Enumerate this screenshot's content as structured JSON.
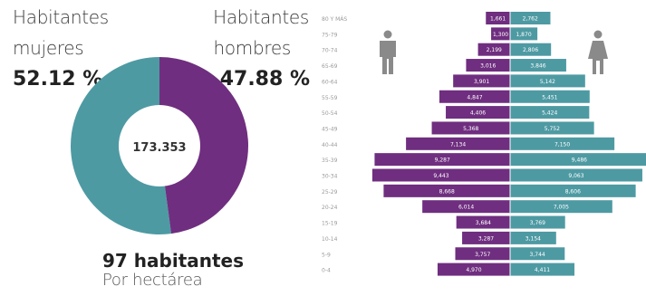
{
  "summary": {
    "female_label_line1": "Habitantes",
    "female_label_line2": "mujeres",
    "female_percent": "52.12 %",
    "male_label_line1": "Habitantes",
    "male_label_line2": "hombres",
    "male_percent": "47.88 %",
    "total_population": "173.353",
    "density_value": "97 habitantes",
    "density_unit": "Por hectárea"
  },
  "colors": {
    "female": "#4e9aa3",
    "male": "#6f2e7f",
    "donut_hole": "#ffffff",
    "icon": "#8a8a8a"
  },
  "icons": [
    "male-person-icon",
    "female-person-icon"
  ],
  "chart_data": [
    {
      "type": "pie",
      "categories": [
        "Habitantes mujeres",
        "Habitantes hombres"
      ],
      "values": [
        52.12,
        47.88
      ],
      "center_label": "173.353"
    },
    {
      "type": "bar",
      "orientation": "horizontal",
      "categories": [
        "80 Y MÁS",
        "75-79",
        "70-74",
        "65-69",
        "60-64",
        "55-59",
        "50-54",
        "45-49",
        "40-44",
        "35-39",
        "30-34",
        "25-29",
        "20-24",
        "15-19",
        "10-14",
        "5-9",
        "0-4"
      ],
      "series": [
        {
          "name": "hombres",
          "values": [
            1661,
            1300,
            2199,
            3016,
            3901,
            4847,
            4406,
            5368,
            7134,
            9287,
            9443,
            8668,
            6014,
            3684,
            3287,
            3757,
            4970
          ],
          "labels": [
            "1,661",
            "1,300",
            "2,199",
            "3,016",
            "3,901",
            "4,847",
            "4,406",
            "5,368",
            "7,134",
            "9,287",
            "9,443",
            "8,668",
            "6,014",
            "3,684",
            "3,287",
            "3,757",
            "4,970"
          ]
        },
        {
          "name": "mujeres",
          "values": [
            2762,
            1870,
            2806,
            3846,
            5142,
            5451,
            5424,
            5752,
            7150,
            9486,
            9063,
            8606,
            7005,
            3769,
            3154,
            3744,
            4411
          ],
          "labels": [
            "2,762",
            "1,870",
            "2,806",
            "3,846",
            "5,142",
            "5,451",
            "5,424",
            "5,752",
            "7,150",
            "9,486",
            "9,063",
            "8,606",
            "7,005",
            "3,769",
            "3,154",
            "3,744",
            "4,411"
          ]
        }
      ],
      "xlim": [
        0,
        9500
      ]
    }
  ]
}
